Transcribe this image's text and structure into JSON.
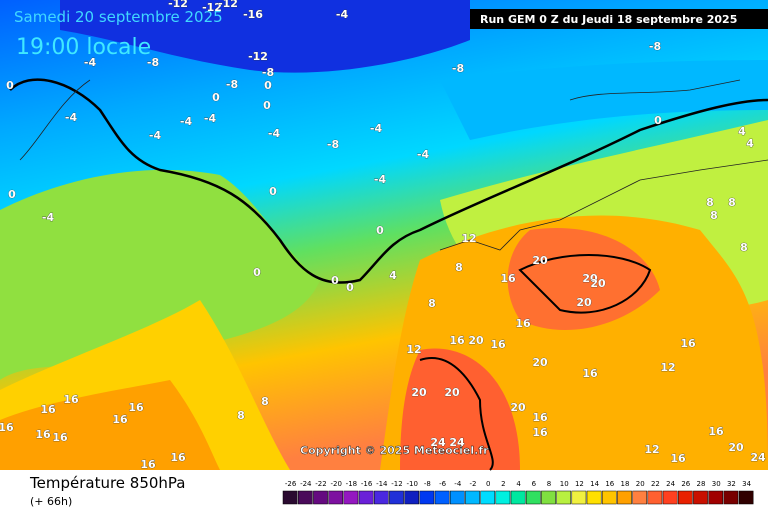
{
  "header": {
    "date": "Samedi 20 septembre 2025",
    "time": "19:00 locale",
    "run": "Run GEM 0 Z du Jeudi 18 septembre 2025"
  },
  "map": {
    "copyright": "Copyright © 2025 Meteociel.fr",
    "contour_labels": [
      -12,
      -12,
      -12,
      -16,
      -4,
      -8,
      -12,
      -8,
      -8,
      -8,
      -8,
      -4,
      0,
      0,
      0,
      0,
      -4,
      -4,
      -4,
      -4,
      -4,
      -8,
      -4,
      -4,
      -4,
      0,
      4,
      0,
      -4,
      0,
      0,
      0,
      0,
      0,
      4,
      12,
      8,
      16,
      20,
      20,
      20,
      20,
      8,
      16,
      16,
      20,
      12,
      16,
      20,
      20,
      20,
      8,
      8,
      16,
      16,
      16,
      16,
      16,
      16,
      16,
      16,
      16,
      20,
      16,
      16,
      24,
      24,
      12,
      16,
      20,
      24,
      16,
      16,
      12,
      16,
      8,
      8,
      8,
      8,
      4
    ]
  },
  "footer": {
    "title": "Température 850hPa",
    "lead": "(+ 66h)"
  },
  "legend": {
    "levels": [
      -26,
      -24,
      -22,
      -20,
      -18,
      -16,
      -14,
      -12,
      -10,
      -8,
      -6,
      -4,
      -2,
      0,
      2,
      4,
      6,
      8,
      10,
      12,
      14,
      16,
      18,
      20,
      22,
      24,
      26,
      28,
      30,
      32,
      34
    ],
    "colors": [
      "#2a0a30",
      "#4a0a5a",
      "#650a80",
      "#7d10a0",
      "#9418c0",
      "#6a20d8",
      "#4a28e0",
      "#2030d8",
      "#1020c0",
      "#0038f0",
      "#0060ff",
      "#0090ff",
      "#00b8ff",
      "#00dcff",
      "#00f0e0",
      "#00e8a0",
      "#30e060",
      "#80e040",
      "#b8f040",
      "#f0f040",
      "#ffe000",
      "#ffc400",
      "#ffa000",
      "#ff8040",
      "#ff6030",
      "#ff4020",
      "#e82000",
      "#c81000",
      "#a00000",
      "#780000",
      "#300000"
    ]
  }
}
